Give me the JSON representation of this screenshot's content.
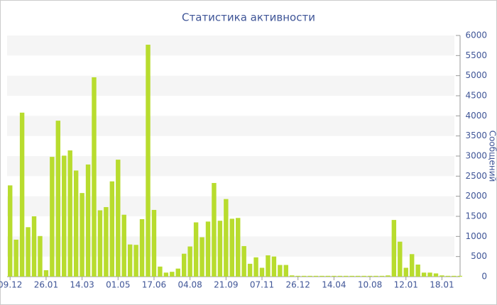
{
  "chart_data": {
    "type": "bar",
    "title": "Статистика активности",
    "y_label": "Сообщений",
    "categories": [
      "09.12",
      null,
      null,
      null,
      null,
      null,
      "26.01",
      null,
      null,
      null,
      null,
      null,
      "14.03",
      null,
      null,
      null,
      null,
      null,
      "01.05",
      null,
      null,
      null,
      null,
      null,
      "17.06",
      null,
      null,
      null,
      null,
      null,
      "04.08",
      null,
      null,
      null,
      null,
      null,
      "21.09",
      null,
      null,
      null,
      null,
      null,
      "07.11",
      null,
      null,
      null,
      null,
      null,
      "26.12",
      null,
      null,
      null,
      null,
      null,
      "14.04",
      null,
      null,
      null,
      null,
      null,
      "10.08",
      null,
      null,
      null,
      null,
      null,
      "12.01",
      null,
      null,
      null,
      null,
      null,
      "18.01",
      null,
      null,
      null
    ],
    "values": [
      2270,
      920,
      4080,
      1230,
      1500,
      1010,
      160,
      2980,
      3880,
      3010,
      3140,
      2640,
      2080,
      2790,
      4960,
      1650,
      1730,
      2370,
      2910,
      1540,
      800,
      790,
      1430,
      5770,
      1660,
      250,
      100,
      120,
      200,
      570,
      750,
      1350,
      980,
      1370,
      2330,
      1390,
      1930,
      1440,
      1460,
      760,
      320,
      480,
      220,
      530,
      500,
      290,
      290,
      30,
      20,
      20,
      20,
      20,
      20,
      20,
      20,
      20,
      20,
      20,
      20,
      20,
      20,
      20,
      20,
      30,
      1410,
      870,
      220,
      560,
      300,
      100,
      100,
      80,
      30,
      20,
      20,
      20
    ],
    "color": "#b8dc2e",
    "ylim": [
      0,
      6000
    ],
    "yticks": [
      0,
      500,
      1000,
      1500,
      2000,
      2500,
      3000,
      3500,
      4000,
      4500,
      5000,
      5500,
      6000
    ],
    "grid": "bands"
  }
}
